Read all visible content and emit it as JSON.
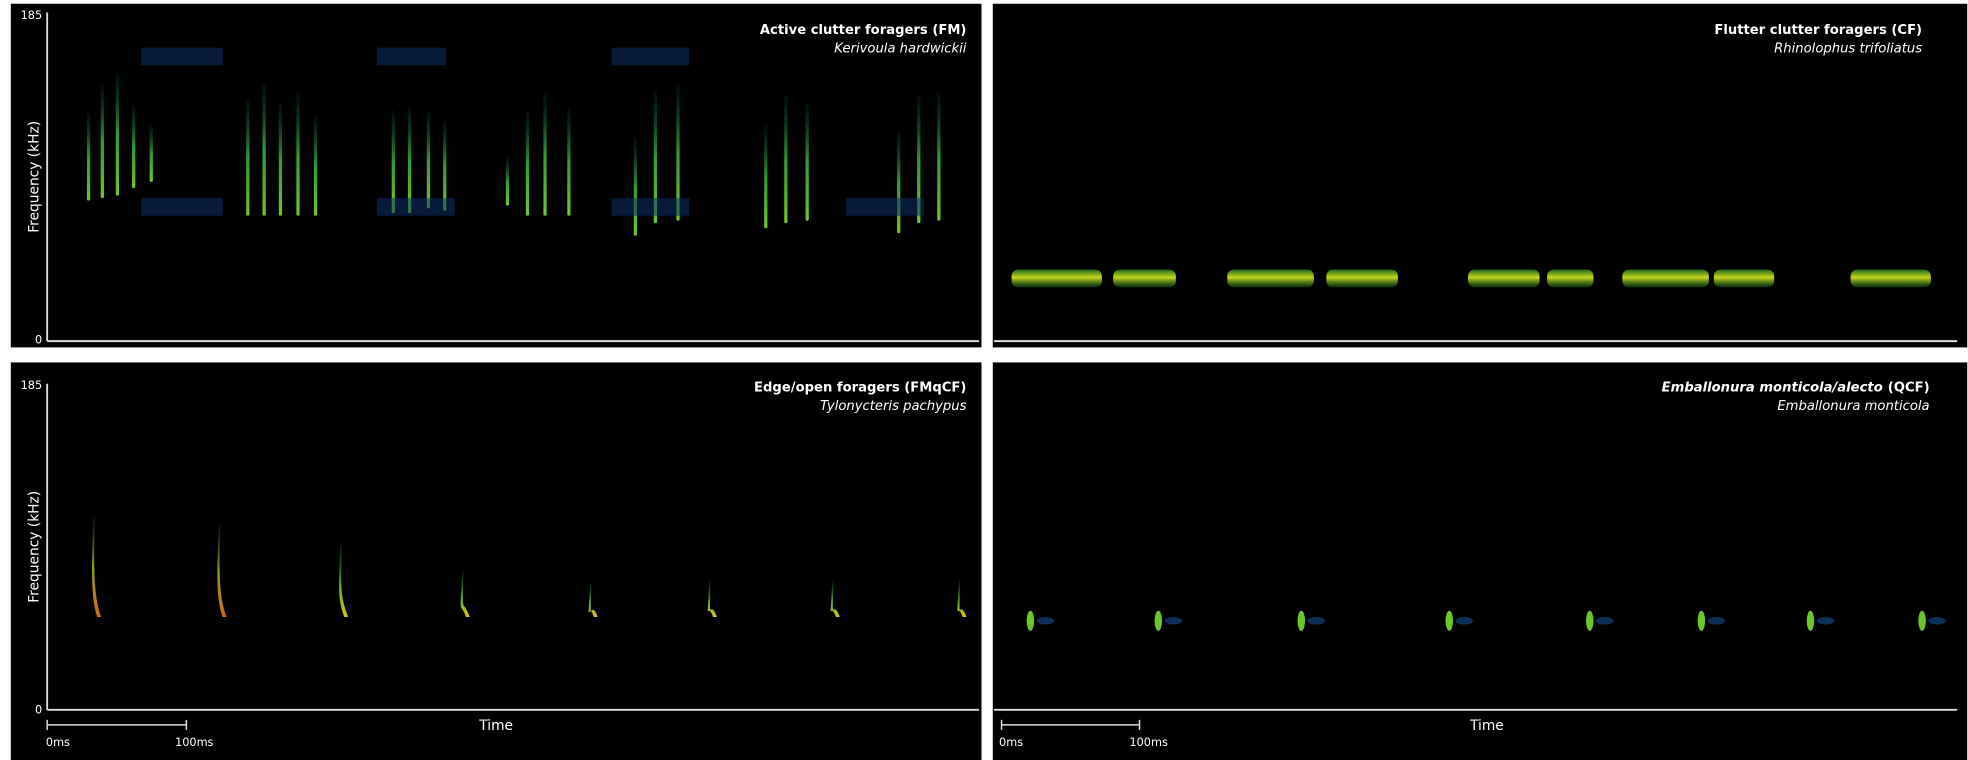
{
  "panels": [
    {
      "title": "Active clutter foragers (FM)",
      "species": "Kerivoula hardwickii",
      "y_axis": {
        "label": "Frequency (kHz)",
        "max": "185",
        "min": "0"
      }
    },
    {
      "title": "Flutter clutter foragers (CF)",
      "species": "Rhinolophus trifoliatus"
    },
    {
      "title": "Edge/open foragers (FMqCF)",
      "species": "Tylonycteris pachypus",
      "y_axis": {
        "label": "Frequency (kHz)",
        "max": "185",
        "min": "0"
      },
      "x_axis": {
        "label": "Time",
        "scale_start": "0ms",
        "scale_end": "100ms"
      }
    },
    {
      "title_parts": [
        "Emballonura monticola/alecto",
        "(QCF)"
      ],
      "species": "Emballonura monticola",
      "x_axis": {
        "label": "Time",
        "scale_start": "0ms",
        "scale_end": "100ms"
      }
    }
  ]
}
